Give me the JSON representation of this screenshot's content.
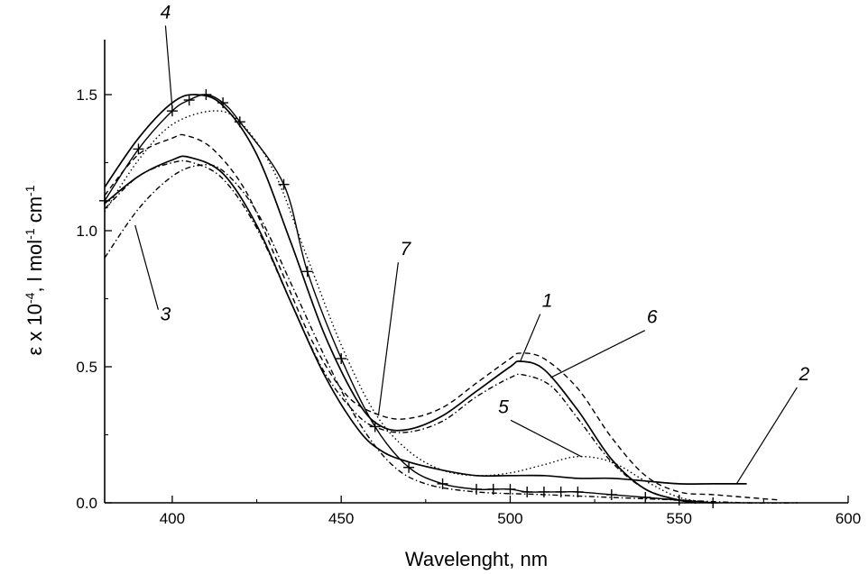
{
  "chart_data": {
    "type": "line",
    "title": "",
    "xlabel": "Wavelenght, nm",
    "ylabel": "ε x 10⁻⁴, l mol⁻¹ cm⁻¹",
    "xlim": [
      380,
      600
    ],
    "ylim": [
      0,
      1.7
    ],
    "x_ticks": [
      400,
      450,
      500,
      550,
      600
    ],
    "y_ticks": [
      "0.0",
      "0.5",
      "1.0",
      "1.5"
    ],
    "grid": false,
    "legend": "none",
    "series": [
      {
        "name": "1",
        "style": "solid",
        "x": [
          380,
          390,
          400,
          407,
          415,
          425,
          435,
          445,
          455,
          462,
          470,
          480,
          490,
          500,
          503,
          510,
          520,
          530,
          540,
          550,
          555
        ],
        "y": [
          1.16,
          1.34,
          1.47,
          1.5,
          1.46,
          1.28,
          0.96,
          0.62,
          0.37,
          0.28,
          0.27,
          0.32,
          0.41,
          0.5,
          0.52,
          0.49,
          0.34,
          0.16,
          0.05,
          0.01,
          0.0
        ]
      },
      {
        "name": "2",
        "style": "solid",
        "x": [
          380,
          390,
          400,
          405,
          415,
          425,
          435,
          445,
          455,
          462,
          470,
          480,
          490,
          500,
          510,
          520,
          530,
          540,
          550,
          560,
          570
        ],
        "y": [
          1.1,
          1.2,
          1.26,
          1.27,
          1.21,
          1.02,
          0.74,
          0.47,
          0.27,
          0.19,
          0.15,
          0.12,
          0.1,
          0.1,
          0.1,
          0.09,
          0.09,
          0.08,
          0.07,
          0.07,
          0.07
        ]
      },
      {
        "name": "3",
        "style": "dashdot",
        "x": [
          380,
          390,
          400,
          408,
          415,
          425,
          435,
          445,
          455,
          465,
          475,
          490,
          510,
          530,
          550,
          570,
          585
        ],
        "y": [
          0.9,
          1.08,
          1.2,
          1.24,
          1.22,
          1.07,
          0.81,
          0.54,
          0.3,
          0.14,
          0.07,
          0.04,
          0.03,
          0.02,
          0.01,
          0.0,
          0.0
        ]
      },
      {
        "name": "4",
        "style": "cross",
        "x": [
          380,
          390,
          400,
          405,
          410,
          415,
          420,
          433,
          440,
          450,
          460,
          470,
          480,
          490,
          495,
          500,
          505,
          510,
          515,
          520,
          530,
          540,
          550,
          560
        ],
        "y": [
          1.11,
          1.3,
          1.44,
          1.48,
          1.5,
          1.47,
          1.4,
          1.17,
          0.85,
          0.53,
          0.28,
          0.13,
          0.07,
          0.05,
          0.05,
          0.05,
          0.04,
          0.04,
          0.04,
          0.04,
          0.03,
          0.02,
          0.01,
          0.0
        ]
      },
      {
        "name": "5",
        "style": "dotted",
        "x": [
          380,
          390,
          400,
          412,
          420,
          430,
          440,
          450,
          460,
          470,
          480,
          490,
          500,
          510,
          520,
          530,
          540,
          550,
          560
        ],
        "y": [
          1.07,
          1.26,
          1.39,
          1.44,
          1.4,
          1.22,
          0.9,
          0.58,
          0.33,
          0.19,
          0.12,
          0.1,
          0.11,
          0.14,
          0.17,
          0.15,
          0.08,
          0.02,
          0.0
        ]
      },
      {
        "name": "6",
        "style": "dashdot",
        "x": [
          380,
          390,
          400,
          406,
          415,
          425,
          435,
          445,
          455,
          462,
          470,
          480,
          490,
          500,
          504,
          512,
          520,
          530,
          540,
          550,
          555
        ],
        "y": [
          1.08,
          1.2,
          1.25,
          1.25,
          1.19,
          1.01,
          0.74,
          0.48,
          0.32,
          0.27,
          0.26,
          0.3,
          0.39,
          0.46,
          0.47,
          0.43,
          0.31,
          0.15,
          0.05,
          0.01,
          0.0
        ]
      },
      {
        "name": "7",
        "style": "dashed",
        "x": [
          380,
          390,
          400,
          404,
          412,
          422,
          432,
          442,
          452,
          462,
          470,
          480,
          490,
          500,
          503,
          510,
          520,
          530,
          540,
          550,
          560,
          570,
          580
        ],
        "y": [
          1.13,
          1.28,
          1.34,
          1.35,
          1.3,
          1.14,
          0.86,
          0.58,
          0.39,
          0.32,
          0.31,
          0.35,
          0.44,
          0.53,
          0.55,
          0.53,
          0.42,
          0.24,
          0.1,
          0.04,
          0.03,
          0.02,
          0.01
        ]
      }
    ],
    "annotations": [
      {
        "text": "1",
        "label_at": [
          511,
          0.72
        ],
        "points_to": [
          503,
          0.52
        ]
      },
      {
        "text": "6",
        "label_at": [
          542,
          0.66
        ],
        "points_to": [
          512,
          0.46
        ]
      },
      {
        "text": "2",
        "label_at": [
          587,
          0.45
        ],
        "points_to": [
          567,
          0.07
        ]
      },
      {
        "text": "5",
        "label_at": [
          498,
          0.33
        ],
        "points_to": [
          521,
          0.17
        ]
      },
      {
        "text": "7",
        "label_at": [
          469,
          0.91
        ],
        "points_to": [
          461,
          0.32
        ]
      },
      {
        "text": "3",
        "label_at": [
          398,
          0.67
        ],
        "points_to": [
          389,
          1.02
        ]
      },
      {
        "text": "4",
        "label_at": [
          398,
          1.78
        ],
        "points_to": [
          400,
          1.45
        ]
      }
    ]
  }
}
